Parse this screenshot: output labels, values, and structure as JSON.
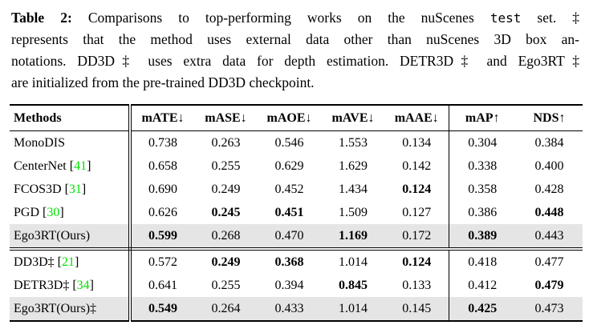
{
  "colors": {
    "citation_green": "#00E000",
    "highlight_gray": "#E5E5E5"
  },
  "caption": {
    "line1": {
      "label": "Table 2:",
      "text_a": " Comparisons to top-performing works on the nuScenes ",
      "mono": "test",
      "text_b": " set. ‡"
    },
    "line2": "represents that the method uses external data other than nuScenes 3D box an-",
    "line3": "notations. DD3D‡ uses extra data for depth estimation. DETR3D‡ and Ego3RT‡",
    "line4": "are initialized from the pre-trained DD3D checkpoint."
  },
  "table": {
    "columns": [
      "Methods",
      "mATE↓",
      "mASE↓",
      "mAOE↓",
      "mAVE↓",
      "mAAE↓",
      "mAP↑",
      "NDS↑"
    ],
    "cite_bracket_open": "[",
    "cite_bracket_close": "]",
    "rows": [
      {
        "method": {
          "name": "MonoDIS",
          "cite": null
        },
        "values": [
          "0.738",
          "0.263",
          "0.546",
          "1.553",
          "0.134",
          "0.304",
          "0.384"
        ],
        "bold": [
          false,
          false,
          false,
          false,
          false,
          false,
          false
        ],
        "highlight": false,
        "section_end": false
      },
      {
        "method": {
          "name": "CenterNet",
          "cite": "41"
        },
        "values": [
          "0.658",
          "0.255",
          "0.629",
          "1.629",
          "0.142",
          "0.338",
          "0.400"
        ],
        "bold": [
          false,
          false,
          false,
          false,
          false,
          false,
          false
        ],
        "highlight": false,
        "section_end": false
      },
      {
        "method": {
          "name": "FCOS3D",
          "cite": "31"
        },
        "values": [
          "0.690",
          "0.249",
          "0.452",
          "1.434",
          "0.124",
          "0.358",
          "0.428"
        ],
        "bold": [
          false,
          false,
          false,
          false,
          true,
          false,
          false
        ],
        "highlight": false,
        "section_end": false
      },
      {
        "method": {
          "name": "PGD",
          "cite": "30"
        },
        "values": [
          "0.626",
          "0.245",
          "0.451",
          "1.509",
          "0.127",
          "0.386",
          "0.448"
        ],
        "bold": [
          false,
          true,
          true,
          false,
          false,
          false,
          true
        ],
        "highlight": false,
        "section_end": false
      },
      {
        "method": {
          "name": "Ego3RT(Ours)",
          "cite": null
        },
        "values": [
          "0.599",
          "0.268",
          "0.470",
          "1.169",
          "0.172",
          "0.389",
          "0.443"
        ],
        "bold": [
          true,
          false,
          false,
          true,
          false,
          true,
          false
        ],
        "highlight": true,
        "section_end": true
      },
      {
        "method": {
          "name": "DD3D‡",
          "cite": "21"
        },
        "values": [
          "0.572",
          "0.249",
          "0.368",
          "1.014",
          "0.124",
          "0.418",
          "0.477"
        ],
        "bold": [
          false,
          true,
          true,
          false,
          true,
          false,
          false
        ],
        "highlight": false,
        "section_end": false
      },
      {
        "method": {
          "name": "DETR3D‡",
          "cite": "34"
        },
        "values": [
          "0.641",
          "0.255",
          "0.394",
          "0.845",
          "0.133",
          "0.412",
          "0.479"
        ],
        "bold": [
          false,
          false,
          false,
          true,
          false,
          false,
          true
        ],
        "highlight": false,
        "section_end": false
      },
      {
        "method": {
          "name": "Ego3RT(Ours)‡",
          "cite": null
        },
        "values": [
          "0.549",
          "0.264",
          "0.433",
          "1.014",
          "0.145",
          "0.425",
          "0.473"
        ],
        "bold": [
          true,
          false,
          false,
          false,
          false,
          true,
          false
        ],
        "highlight": true,
        "section_end": false
      }
    ]
  }
}
